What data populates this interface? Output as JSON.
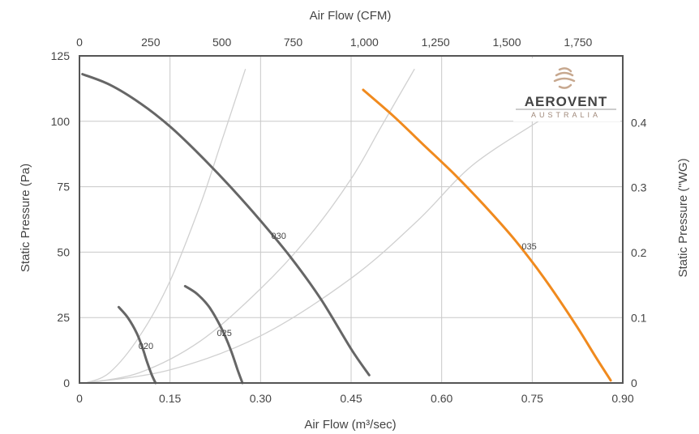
{
  "chart_data": {
    "type": "line",
    "title": "",
    "xlabel_bottom": "Air Flow (m³/sec)",
    "xlabel_top": "Air Flow (CFM)",
    "ylabel_left": "Static Pressure (Pa)",
    "ylabel_right": "Static Pressure (\"WG)",
    "xlim": [
      0,
      0.9
    ],
    "ylim": [
      0,
      125
    ],
    "x_ticks": [
      "0",
      "0.15",
      "0.30",
      "0.45",
      "0.60",
      "0.75",
      "0.90"
    ],
    "x_tick_values": [
      0,
      0.15,
      0.3,
      0.45,
      0.6,
      0.75,
      0.9
    ],
    "y_ticks": [
      "0",
      "25",
      "50",
      "75",
      "100",
      "125"
    ],
    "y_tick_values": [
      0,
      25,
      50,
      75,
      100,
      125
    ],
    "top_ticks": [
      "0",
      "250",
      "500",
      "750",
      "1,000",
      "1,250",
      "1,500",
      "1,750"
    ],
    "top_tick_values": [
      0,
      250,
      500,
      750,
      1000,
      1250,
      1500,
      1750
    ],
    "right_ticks": [
      "0",
      "0.1",
      "0.2",
      "0.3",
      "0.4"
    ],
    "right_tick_values": [
      0,
      0.1,
      0.2,
      0.3,
      0.4
    ],
    "grid": true,
    "legend": "none",
    "series": [
      {
        "name": "020",
        "color": "#666666",
        "label_at": [
          0.11,
          13
        ],
        "x": [
          0.065,
          0.08,
          0.095,
          0.105,
          0.112,
          0.12,
          0.126
        ],
        "y": [
          29,
          25,
          19,
          13,
          8,
          3,
          0
        ]
      },
      {
        "name": "025",
        "color": "#666666",
        "label_at": [
          0.24,
          18
        ],
        "x": [
          0.175,
          0.195,
          0.215,
          0.235,
          0.25,
          0.262,
          0.27
        ],
        "y": [
          37,
          34,
          29,
          21,
          13,
          5,
          0
        ]
      },
      {
        "name": "030",
        "color": "#666666",
        "label_at": [
          0.33,
          55
        ],
        "x": [
          0.005,
          0.05,
          0.1,
          0.15,
          0.2,
          0.25,
          0.3,
          0.35,
          0.4,
          0.45,
          0.48
        ],
        "y": [
          118,
          114,
          107,
          98,
          87,
          75,
          62,
          48,
          32,
          13,
          3
        ]
      },
      {
        "name": "035",
        "color": "#f08a1e",
        "label_at": [
          0.745,
          51
        ],
        "x": [
          0.47,
          0.52,
          0.57,
          0.62,
          0.67,
          0.72,
          0.77,
          0.82,
          0.855,
          0.88
        ],
        "y": [
          112,
          102,
          91,
          80,
          68,
          55,
          40,
          23,
          10,
          1
        ]
      }
    ],
    "system_curves": [
      {
        "x": [
          0.01,
          0.05,
          0.1,
          0.15,
          0.2,
          0.235,
          0.275
        ],
        "y": [
          0,
          4,
          18,
          39,
          68,
          92,
          120
        ]
      },
      {
        "x": [
          0.01,
          0.1,
          0.2,
          0.3,
          0.38,
          0.45,
          0.5,
          0.555
        ],
        "y": [
          0,
          4,
          16,
          36,
          56,
          78,
          98,
          120
        ]
      },
      {
        "x": [
          0.01,
          0.15,
          0.3,
          0.45,
          0.56,
          0.65,
          0.76
        ],
        "y": [
          0,
          5,
          18,
          40,
          62,
          83,
          100
        ]
      }
    ]
  },
  "logo": {
    "name": "aerovent-logo",
    "main": "AEROVENT",
    "sub": "AUSTRALIA"
  }
}
